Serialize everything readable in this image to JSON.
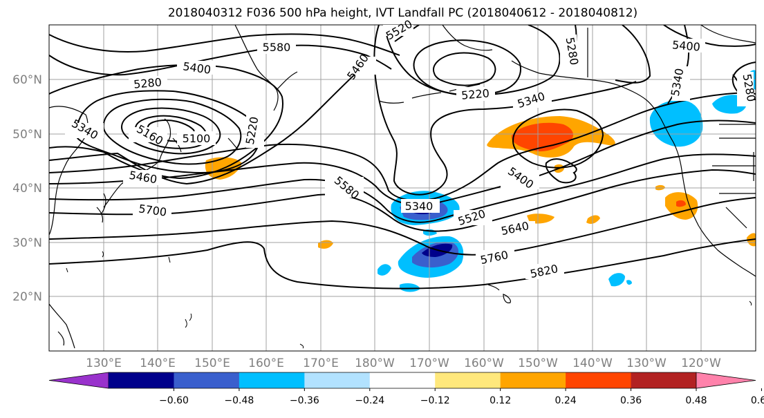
{
  "title": "2018040312 F036 500 hPa height, IVT Landfall PC (2018040612 - 2018040812)",
  "lat_labels": [
    "60°N",
    "50°N",
    "40°N",
    "30°N",
    "20°N"
  ],
  "lon_labels": [
    "130°E",
    "140°E",
    "150°E",
    "160°E",
    "170°E",
    "180°W",
    "170°W",
    "160°W",
    "150°W",
    "140°W",
    "130°W",
    "120°W"
  ],
  "contour_labels": [
    "5580",
    "5520",
    "5460",
    "5400",
    "5280",
    "5280",
    "5400",
    "5340",
    "5220",
    "5340",
    "5160",
    "5100",
    "5220",
    "5340",
    "5460",
    "5700",
    "5580",
    "5340",
    "5400",
    "5520",
    "5640",
    "5760",
    "5820",
    "5340",
    "5280"
  ],
  "colorbar": {
    "ticks": [
      "−0.60",
      "−0.48",
      "−0.36",
      "−0.24",
      "−0.12",
      "0.12",
      "0.24",
      "0.36",
      "0.48",
      "0.60"
    ],
    "colors": [
      "#9932CC",
      "#00008B",
      "#3A5FCD",
      "#00BFFF",
      "#B2E2FF",
      "#FFFFFF",
      "#FFE87C",
      "#FFA500",
      "#FF4500",
      "#B22222",
      "#FF82AB"
    ]
  },
  "colors": {
    "grid": "#a0a0a0",
    "label_gray": "#7f7f7f",
    "coast": "#000000"
  }
}
